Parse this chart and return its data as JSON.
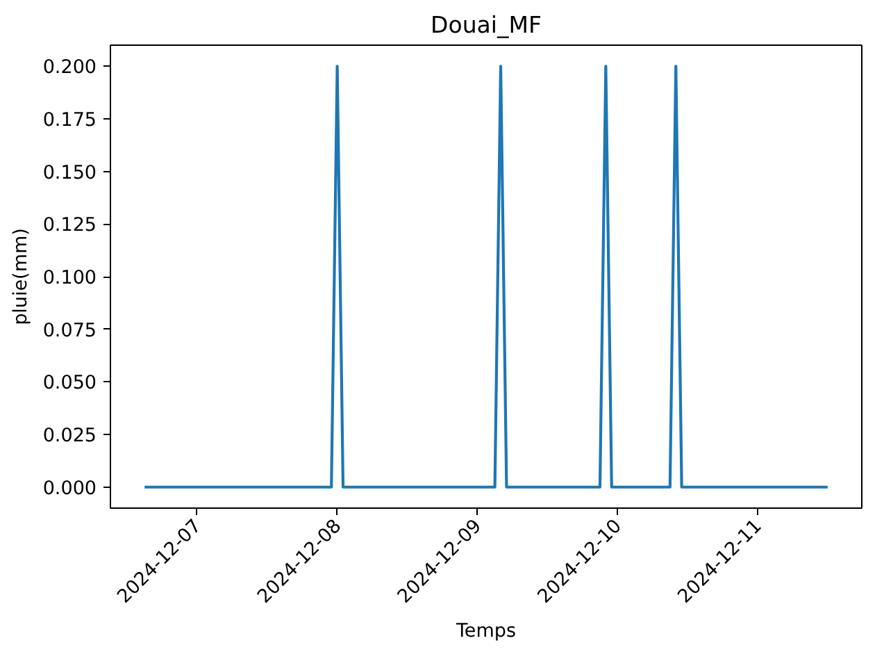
{
  "chart_data": {
    "type": "line",
    "title": "Douai_MF",
    "xlabel": "Temps",
    "ylabel": "pluie(mm)",
    "color": "#1f77b4",
    "x": [
      "2024-12-06T15:00",
      "2024-12-07T23:00",
      "2024-12-08T00:00",
      "2024-12-08T01:00",
      "2024-12-09T03:00",
      "2024-12-09T04:00",
      "2024-12-09T05:00",
      "2024-12-09T21:00",
      "2024-12-09T22:00",
      "2024-12-09T23:00",
      "2024-12-10T09:00",
      "2024-12-10T10:00",
      "2024-12-10T11:00",
      "2024-12-11T12:00"
    ],
    "values": [
      0,
      0,
      0.2,
      0,
      0,
      0.2,
      0,
      0,
      0.2,
      0,
      0,
      0.2,
      0,
      0
    ],
    "xlim": [
      "2024-12-06T09:09",
      "2024-12-11T17:51"
    ],
    "xticks": [
      "2024-12-07",
      "2024-12-08",
      "2024-12-09",
      "2024-12-10",
      "2024-12-11"
    ],
    "ylim": [
      -0.01,
      0.21
    ],
    "yticks": [
      {
        "value": 0,
        "label": "0.000"
      },
      {
        "value": 0.025,
        "label": "0.025"
      },
      {
        "value": 0.05,
        "label": "0.050"
      },
      {
        "value": 0.075,
        "label": "0.075"
      },
      {
        "value": 0.1,
        "label": "0.100"
      },
      {
        "value": 0.125,
        "label": "0.125"
      },
      {
        "value": 0.15,
        "label": "0.150"
      },
      {
        "value": 0.175,
        "label": "0.175"
      },
      {
        "value": 0.2,
        "label": "0.200"
      }
    ]
  }
}
